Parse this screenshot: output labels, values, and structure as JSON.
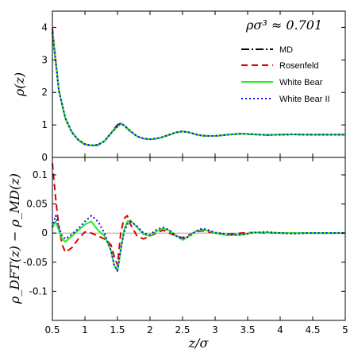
{
  "chart_data": [
    {
      "type": "line",
      "panel": "top",
      "ylabel": "ρ(z)",
      "annotation": "ρσ³ ≈ 0.701",
      "xlim": [
        0.5,
        5
      ],
      "ylim": [
        0,
        4.5
      ],
      "yticks": [
        0,
        1,
        2,
        3,
        4
      ],
      "grid": false,
      "legend_position": "top-right",
      "series": [
        {
          "name": "MD",
          "color": "#000000",
          "dash": "dashdot",
          "x": [
            0.5,
            0.6,
            0.7,
            0.8,
            0.9,
            1.0,
            1.1,
            1.2,
            1.3,
            1.4,
            1.5,
            1.55,
            1.6,
            1.7,
            1.8,
            1.9,
            2.0,
            2.1,
            2.2,
            2.3,
            2.4,
            2.5,
            2.6,
            2.7,
            2.8,
            2.9,
            3.0,
            3.2,
            3.4,
            3.5,
            3.6,
            3.8,
            4.0,
            4.2,
            4.4,
            4.6,
            4.8,
            5.0
          ],
          "y": [
            3.85,
            2.05,
            1.2,
            0.78,
            0.53,
            0.4,
            0.36,
            0.38,
            0.5,
            0.75,
            1.0,
            1.05,
            0.98,
            0.8,
            0.65,
            0.58,
            0.56,
            0.58,
            0.63,
            0.7,
            0.77,
            0.8,
            0.77,
            0.71,
            0.67,
            0.66,
            0.66,
            0.7,
            0.73,
            0.72,
            0.71,
            0.69,
            0.7,
            0.71,
            0.7,
            0.7,
            0.7,
            0.7
          ]
        },
        {
          "name": "Rosenfeld",
          "color": "#e00000",
          "dash": "dashed",
          "x": [
            0.5,
            0.6,
            0.7,
            0.8,
            0.9,
            1.0,
            1.1,
            1.2,
            1.3,
            1.4,
            1.5,
            1.55,
            1.6,
            1.7,
            1.8,
            1.9,
            2.0,
            2.1,
            2.2,
            2.3,
            2.4,
            2.5,
            2.6,
            2.7,
            2.8,
            2.9,
            3.0,
            3.2,
            3.4,
            3.5,
            3.6,
            3.8,
            4.0,
            4.2,
            4.4,
            4.6,
            4.8,
            5.0
          ],
          "y": [
            3.97,
            2.05,
            1.19,
            0.77,
            0.53,
            0.4,
            0.36,
            0.39,
            0.5,
            0.74,
            0.96,
            1.05,
            1.0,
            0.8,
            0.65,
            0.58,
            0.56,
            0.58,
            0.63,
            0.7,
            0.77,
            0.8,
            0.77,
            0.71,
            0.67,
            0.66,
            0.66,
            0.7,
            0.73,
            0.72,
            0.71,
            0.69,
            0.7,
            0.71,
            0.7,
            0.7,
            0.7,
            0.7
          ]
        },
        {
          "name": "White Bear",
          "color": "#22ee22",
          "dash": "solid",
          "x": [
            0.5,
            0.6,
            0.7,
            0.8,
            0.9,
            1.0,
            1.1,
            1.2,
            1.3,
            1.4,
            1.5,
            1.55,
            1.6,
            1.7,
            1.8,
            1.9,
            2.0,
            2.1,
            2.2,
            2.3,
            2.4,
            2.5,
            2.6,
            2.7,
            2.8,
            2.9,
            3.0,
            3.2,
            3.4,
            3.5,
            3.6,
            3.8,
            4.0,
            4.2,
            4.4,
            4.6,
            4.8,
            5.0
          ],
          "y": [
            3.86,
            2.05,
            1.19,
            0.77,
            0.54,
            0.41,
            0.37,
            0.39,
            0.5,
            0.74,
            0.95,
            1.04,
            0.99,
            0.81,
            0.65,
            0.58,
            0.56,
            0.58,
            0.63,
            0.7,
            0.77,
            0.8,
            0.77,
            0.71,
            0.67,
            0.66,
            0.66,
            0.7,
            0.73,
            0.72,
            0.71,
            0.69,
            0.7,
            0.71,
            0.7,
            0.7,
            0.7,
            0.7
          ]
        },
        {
          "name": "White Bear II",
          "color": "#1010ee",
          "dash": "dotted",
          "x": [
            0.5,
            0.6,
            0.7,
            0.8,
            0.9,
            1.0,
            1.1,
            1.2,
            1.3,
            1.4,
            1.5,
            1.55,
            1.6,
            1.7,
            1.8,
            1.9,
            2.0,
            2.1,
            2.2,
            2.3,
            2.4,
            2.5,
            2.6,
            2.7,
            2.8,
            2.9,
            3.0,
            3.2,
            3.4,
            3.5,
            3.6,
            3.8,
            4.0,
            4.2,
            4.4,
            4.6,
            4.8,
            5.0
          ],
          "y": [
            3.85,
            2.06,
            1.2,
            0.77,
            0.54,
            0.41,
            0.37,
            0.39,
            0.5,
            0.74,
            0.95,
            1.04,
            0.99,
            0.81,
            0.65,
            0.58,
            0.56,
            0.58,
            0.63,
            0.7,
            0.77,
            0.8,
            0.77,
            0.71,
            0.67,
            0.66,
            0.66,
            0.7,
            0.73,
            0.72,
            0.71,
            0.69,
            0.7,
            0.71,
            0.7,
            0.7,
            0.7,
            0.7
          ]
        }
      ]
    },
    {
      "type": "line",
      "panel": "bottom",
      "xlabel": "z/σ",
      "ylabel": "ρ_DFT(z) − ρ_MD(z)",
      "xlim": [
        0.5,
        5
      ],
      "ylim": [
        -0.15,
        0.13
      ],
      "xticks": [
        0.5,
        1,
        1.5,
        2,
        2.5,
        3,
        3.5,
        4,
        4.5,
        5
      ],
      "xtick_labels": [
        "0.5",
        "1",
        "1.5",
        "2",
        "2.5",
        "3",
        "3.5",
        "4",
        "4.5",
        "5"
      ],
      "yticks": [
        -0.1,
        -0.05,
        0,
        0.05,
        0.1
      ],
      "ytick_labels": [
        "-0.1",
        "-0.05",
        "0",
        "0.05",
        "0.1"
      ],
      "grid": false,
      "reference_line": 0,
      "series": [
        {
          "name": "Rosenfeld",
          "color": "#e00000",
          "dash": "dashed",
          "x": [
            0.5,
            0.55,
            0.6,
            0.65,
            0.7,
            0.8,
            0.9,
            1.0,
            1.1,
            1.2,
            1.3,
            1.4,
            1.45,
            1.5,
            1.55,
            1.6,
            1.65,
            1.7,
            1.8,
            1.9,
            2.0,
            2.1,
            2.2,
            2.3,
            2.4,
            2.5,
            2.6,
            2.7,
            2.8,
            2.9,
            3.0,
            3.2,
            3.4,
            3.6,
            3.8,
            4.0,
            4.2,
            4.4,
            4.6,
            4.8,
            5.0
          ],
          "y": [
            0.12,
            0.06,
            0.01,
            -0.02,
            -0.033,
            -0.025,
            -0.01,
            0.002,
            0.0,
            -0.005,
            -0.01,
            -0.02,
            -0.04,
            -0.055,
            0.0,
            0.025,
            0.03,
            0.015,
            -0.005,
            -0.01,
            -0.005,
            0.0,
            0.005,
            0.0,
            -0.005,
            -0.008,
            -0.003,
            0.002,
            0.004,
            0.002,
            0.0,
            -0.002,
            0.0,
            0.001,
            0.0,
            0.0,
            0.0,
            0.0,
            0.0,
            0.0,
            0.0
          ]
        },
        {
          "name": "White Bear",
          "color": "#22ee22",
          "dash": "solid",
          "x": [
            0.5,
            0.55,
            0.6,
            0.65,
            0.7,
            0.8,
            0.9,
            1.0,
            1.1,
            1.2,
            1.3,
            1.4,
            1.45,
            1.5,
            1.55,
            1.6,
            1.65,
            1.7,
            1.8,
            1.9,
            2.0,
            2.1,
            2.2,
            2.3,
            2.4,
            2.5,
            2.6,
            2.7,
            2.8,
            2.9,
            3.0,
            3.2,
            3.4,
            3.6,
            3.8,
            4.0,
            4.2,
            4.4,
            4.6,
            4.8,
            5.0
          ],
          "y": [
            0.01,
            0.02,
            0.005,
            -0.01,
            -0.015,
            -0.005,
            0.005,
            0.015,
            0.02,
            0.005,
            -0.005,
            -0.03,
            -0.055,
            -0.065,
            -0.03,
            0.005,
            0.02,
            0.022,
            0.01,
            -0.002,
            -0.005,
            0.003,
            0.008,
            0.004,
            -0.004,
            -0.012,
            -0.005,
            0.003,
            0.006,
            0.004,
            0.0,
            -0.004,
            -0.003,
            0.001,
            0.001,
            0.0,
            0.0,
            0.0,
            0.0,
            0.0,
            0.0
          ]
        },
        {
          "name": "White Bear II",
          "color": "#1010ee",
          "dash": "dotted",
          "x": [
            0.5,
            0.55,
            0.6,
            0.65,
            0.7,
            0.8,
            0.9,
            1.0,
            1.1,
            1.2,
            1.3,
            1.4,
            1.45,
            1.5,
            1.55,
            1.6,
            1.65,
            1.7,
            1.8,
            1.9,
            2.0,
            2.1,
            2.2,
            2.3,
            2.4,
            2.5,
            2.6,
            2.7,
            2.8,
            2.9,
            3.0,
            3.2,
            3.4,
            3.6,
            3.8,
            4.0,
            4.2,
            4.4,
            4.6,
            4.8,
            5.0
          ],
          "y": [
            0.01,
            0.03,
            0.01,
            -0.005,
            -0.01,
            -0.002,
            0.008,
            0.02,
            0.03,
            0.02,
            0.0,
            -0.03,
            -0.055,
            -0.065,
            -0.028,
            0.0,
            0.015,
            0.02,
            0.012,
            0.0,
            -0.003,
            0.006,
            0.01,
            0.005,
            -0.005,
            -0.01,
            -0.006,
            0.003,
            0.008,
            0.005,
            0.001,
            -0.002,
            -0.003,
            0.001,
            0.002,
            0.0,
            -0.001,
            0.0,
            0.0,
            0.0,
            0.0
          ]
        }
      ]
    }
  ]
}
